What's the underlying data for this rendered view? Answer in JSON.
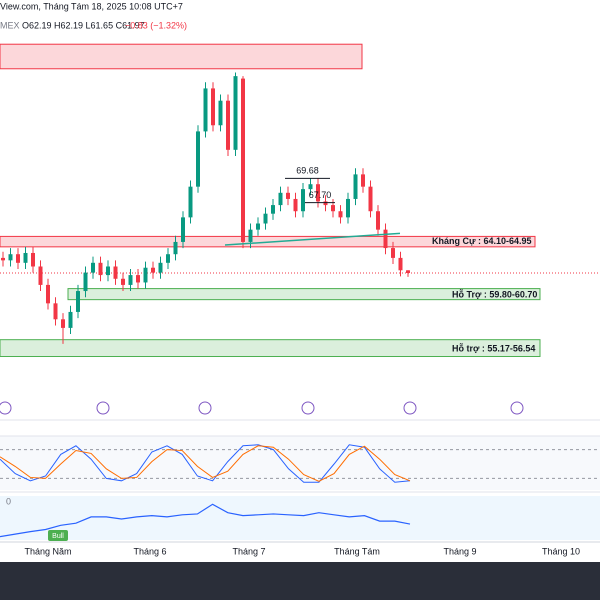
{
  "chart_data": {
    "type": "candlestick",
    "source_line": "View.com, Tháng Tám 18, 2025 10:08 UTC+7",
    "symbol": "MEX",
    "ohlc_text": "O62.19 H62.19 L61.65 C61.97",
    "change_text": "−0.83 (−1.32%)",
    "up_color": "#089981",
    "down_color": "#f23645",
    "ylim": [
      50,
      84.2
    ],
    "open": [
      63.2,
      63.0,
      63.5,
      62.8,
      63.6,
      62.5,
      61.0,
      59.5,
      58.2,
      57.5,
      58.8,
      60.5,
      62.0,
      62.8,
      61.8,
      62.5,
      61.5,
      61.0,
      61.8,
      61.2,
      62.4,
      62.0,
      62.8,
      63.5,
      64.5,
      66.5,
      69.0,
      73.5,
      77.0,
      74.0,
      76.0,
      72.0,
      77.8,
      64.5,
      65.5,
      66.0,
      66.8,
      67.5,
      68.5,
      68.0,
      67.0,
      68.8,
      69.2,
      67.8,
      67.5,
      67.0,
      66.5,
      68.0,
      70.0,
      69.0,
      67.0,
      65.5,
      64.0,
      63.2,
      62.19
    ],
    "high": [
      63.7,
      64.0,
      64.0,
      64.1,
      64.1,
      63.0,
      61.5,
      60.0,
      58.7,
      59.3,
      61.0,
      62.5,
      63.3,
      63.3,
      63.0,
      63.0,
      62.0,
      62.3,
      62.3,
      62.9,
      62.9,
      63.3,
      64.0,
      65.0,
      67.0,
      69.5,
      74.0,
      77.5,
      77.5,
      76.5,
      76.5,
      78.3,
      78.0,
      66.0,
      66.5,
      67.3,
      68.0,
      69.0,
      69.0,
      68.5,
      69.3,
      69.7,
      69.7,
      68.3,
      68.0,
      67.5,
      68.5,
      70.5,
      70.5,
      69.5,
      67.5,
      66.0,
      64.5,
      63.7,
      62.19
    ],
    "low": [
      62.5,
      62.5,
      62.3,
      62.3,
      62.0,
      60.5,
      59.0,
      57.7,
      56.2,
      57.0,
      58.3,
      60.0,
      61.5,
      61.3,
      61.3,
      61.0,
      60.5,
      60.5,
      60.7,
      60.7,
      61.5,
      61.5,
      62.3,
      63.0,
      64.0,
      66.0,
      68.5,
      73.0,
      73.5,
      73.5,
      71.5,
      71.5,
      64.0,
      64.0,
      65.0,
      65.5,
      66.3,
      67.0,
      67.5,
      66.5,
      66.5,
      68.3,
      67.3,
      67.0,
      66.5,
      66.0,
      66.0,
      67.5,
      68.5,
      66.5,
      65.0,
      63.5,
      62.7,
      61.7,
      61.65
    ],
    "close": [
      63.0,
      63.5,
      62.8,
      63.6,
      62.5,
      61.0,
      59.5,
      58.2,
      57.5,
      58.8,
      60.5,
      62.0,
      62.8,
      61.8,
      62.5,
      61.5,
      61.0,
      61.8,
      61.2,
      62.4,
      62.0,
      62.8,
      63.5,
      64.5,
      66.5,
      69.0,
      73.5,
      77.0,
      74.0,
      76.0,
      72.0,
      78.0,
      64.5,
      65.5,
      66.0,
      66.8,
      67.5,
      68.5,
      68.0,
      67.0,
      68.8,
      69.2,
      67.8,
      67.5,
      67.0,
      66.5,
      68.0,
      70.0,
      69.0,
      67.0,
      65.5,
      64.0,
      63.2,
      62.19,
      61.97
    ],
    "zones": [
      {
        "low": 78.6,
        "high": 80.6,
        "color": "#f23645"
      },
      {
        "label": "Kháng Cự : 64.10-64.95",
        "low": 64.1,
        "high": 64.95,
        "color": "#f23645"
      },
      {
        "label": "Hỗ Trợ : 59.80-60.70",
        "low": 59.8,
        "high": 60.7,
        "color": "#4caf50"
      },
      {
        "label": "Hỗ trợ : 55.17-56.54",
        "low": 55.17,
        "high": 56.54,
        "color": "#4caf50"
      }
    ],
    "levels": [
      {
        "value": 69.68,
        "label": "69.68"
      },
      {
        "value": 67.7,
        "label": "67.70"
      }
    ],
    "trendline": {
      "start": 64.25,
      "end": 65.2,
      "color": "#22ab94"
    },
    "stoch": {
      "ylim": [
        0,
        100
      ],
      "yticks": [
        20,
        80
      ],
      "series": [
        {
          "color": "#2962ff",
          "values": [
            60,
            30,
            15,
            25,
            70,
            88,
            60,
            20,
            15,
            30,
            75,
            88,
            70,
            25,
            15,
            55,
            88,
            90,
            80,
            40,
            12,
            12,
            50,
            90,
            85,
            40,
            12,
            15
          ]
        },
        {
          "color": "#ff6d00",
          "values": [
            65,
            45,
            22,
            20,
            50,
            78,
            72,
            40,
            20,
            22,
            55,
            80,
            78,
            45,
            22,
            35,
            70,
            88,
            85,
            60,
            28,
            14,
            30,
            70,
            87,
            60,
            28,
            15
          ]
        }
      ]
    },
    "lower": {
      "ylim": [
        0,
        100
      ],
      "color": "#2962ff",
      "label": "Bull",
      "axis_label": "0",
      "values": [
        8,
        14,
        20,
        25,
        35,
        40,
        55,
        55,
        50,
        55,
        58,
        55,
        60,
        62,
        85,
        65,
        58,
        60,
        62,
        60,
        58,
        65,
        60,
        55,
        58,
        45,
        45,
        38
      ]
    },
    "months": [
      "Tháng Năm",
      "Tháng 6",
      "Tháng 7",
      "Tháng Tám",
      "Tháng 9",
      "Tháng 10"
    ]
  }
}
